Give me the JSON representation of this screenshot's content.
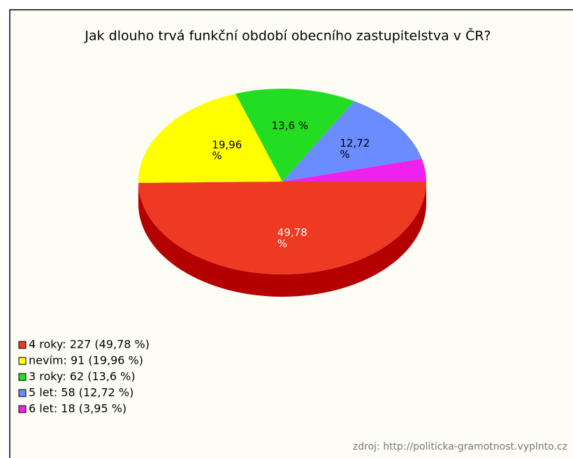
{
  "chart_data": {
    "type": "pie3d",
    "title": "Jak dlouho trvá funkční období obecního zastupitelstva v ČR?",
    "categories": [
      "4 roky",
      "nevím",
      "3 roky",
      "5 let",
      "6 let"
    ],
    "values": [
      49.78,
      19.96,
      13.6,
      12.72,
      3.95
    ],
    "value_labels": [
      "49,78 %",
      "19,96 %",
      "13,6 %",
      "12,72 %",
      null
    ],
    "legend_labels": [
      "4 roky: 227 (49,78 %)",
      "nevím: 91 (19,96 %)",
      "3 roky: 62 (13,6 %)",
      "5 let: 58 (12,72 %)",
      "6 let: 18 (3,95 %)"
    ],
    "colors": [
      "#ee3a22",
      "#ffff00",
      "#22dd22",
      "#6a8cff",
      "#ee22ee"
    ],
    "side_colors": [
      "#b40000",
      "#b8b800",
      "#119911",
      "#3355bb",
      "#aa10aa"
    ],
    "source": "zdroj: http://politicka-gramotnost.vyplnto.cz"
  }
}
